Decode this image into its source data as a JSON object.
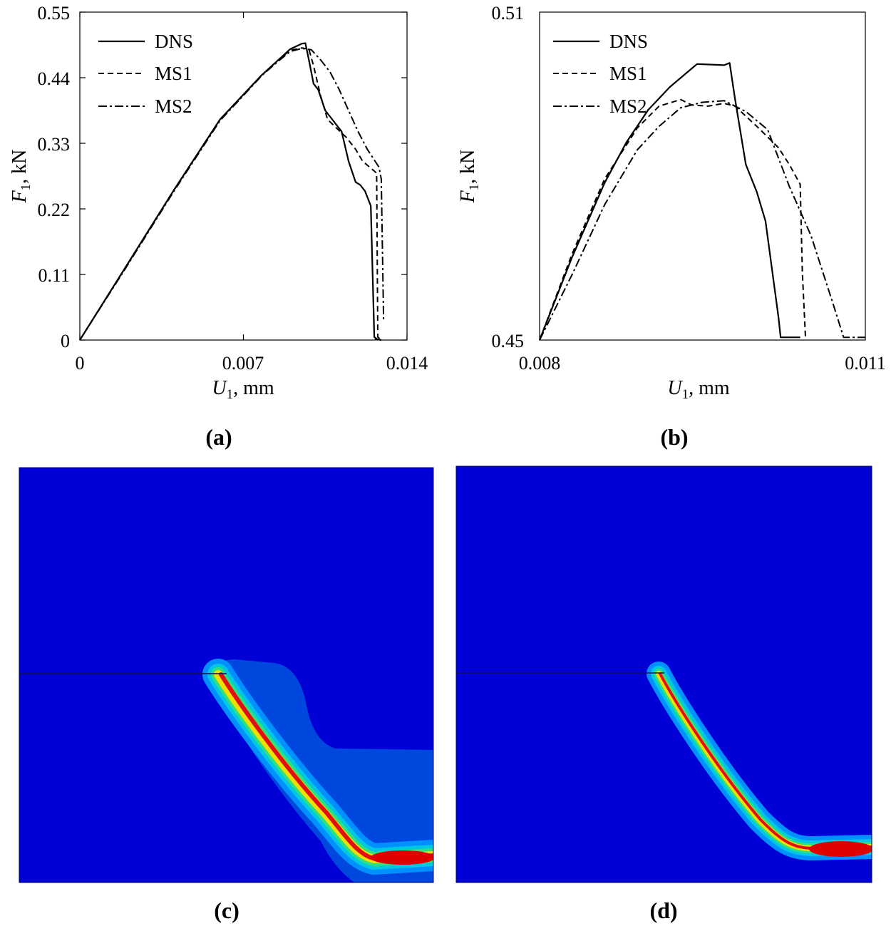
{
  "panels": {
    "a": "(a)",
    "b": "(b)",
    "c": "(c)",
    "d": "(d)"
  },
  "chart_data": [
    {
      "type": "line",
      "xlabel": "U1, mm",
      "ylabel": "F1, kN",
      "xlim": [
        0,
        0.014
      ],
      "ylim": [
        0,
        0.55
      ],
      "xticks": [
        "0",
        "0.007",
        "0.014"
      ],
      "yticks": [
        "0",
        "0.11",
        "0.22",
        "0.33",
        "0.44",
        "0.55"
      ],
      "legend_placement": "top-left",
      "series": [
        {
          "name": "DNS",
          "style": "solid",
          "x": [
            0,
            0.002,
            0.004,
            0.006,
            0.0078,
            0.0085,
            0.009,
            0.0095,
            0.00965,
            0.0098,
            0.01,
            0.0102,
            0.0105,
            0.0108,
            0.011,
            0.0112,
            0.0115,
            0.0118,
            0.012,
            0.0122,
            0.01245,
            0.0126,
            0.0127,
            0.01265,
            0.0129
          ],
          "y": [
            0,
            0.125,
            0.25,
            0.37,
            0.445,
            0.47,
            0.488,
            0.497,
            0.498,
            0.47,
            0.43,
            0.42,
            0.385,
            0.37,
            0.36,
            0.35,
            0.3,
            0.265,
            0.26,
            0.25,
            0.225,
            0.005,
            0.002,
            0.002,
            0.0
          ]
        },
        {
          "name": "MS1",
          "style": "dashed",
          "x": [
            0,
            0.002,
            0.004,
            0.006,
            0.0078,
            0.0085,
            0.009,
            0.0095,
            0.0098,
            0.01,
            0.0103,
            0.0106,
            0.011,
            0.0114,
            0.0118,
            0.0121,
            0.0127,
            0.01275,
            0.0129
          ],
          "y": [
            0,
            0.125,
            0.25,
            0.37,
            0.445,
            0.47,
            0.486,
            0.49,
            0.488,
            0.46,
            0.41,
            0.37,
            0.355,
            0.34,
            0.32,
            0.3,
            0.28,
            0.005,
            0.0
          ]
        },
        {
          "name": "MS2",
          "style": "dashdot",
          "x": [
            0,
            0.002,
            0.004,
            0.006,
            0.0078,
            0.0085,
            0.009,
            0.0095,
            0.0099,
            0.0103,
            0.0107,
            0.0111,
            0.0115,
            0.0119,
            0.0123,
            0.0128,
            0.0129,
            0.013
          ],
          "y": [
            0,
            0.123,
            0.248,
            0.368,
            0.444,
            0.468,
            0.484,
            0.489,
            0.487,
            0.47,
            0.45,
            0.42,
            0.385,
            0.35,
            0.32,
            0.29,
            0.27,
            0.03
          ]
        }
      ]
    },
    {
      "type": "line",
      "xlabel": "U1, mm",
      "ylabel": "F1, kN",
      "xlim": [
        0.008,
        0.011
      ],
      "ylim": [
        0.45,
        0.51
      ],
      "xticks": [
        "0.008",
        "0.011"
      ],
      "yticks": [
        "0.45",
        "0.51"
      ],
      "legend_placement": "top-left",
      "series": [
        {
          "name": "DNS",
          "style": "solid",
          "x": [
            0.008,
            0.0083,
            0.0086,
            0.0088,
            0.009,
            0.0092,
            0.00945,
            0.0097,
            0.00975,
            0.0098,
            0.0099,
            0.01,
            0.01008,
            0.0102,
            0.01022,
            0.0104
          ],
          "y": [
            0.45,
            0.4652,
            0.4788,
            0.4862,
            0.4921,
            0.4963,
            0.5005,
            0.5003,
            0.5007,
            0.4941,
            0.4821,
            0.4771,
            0.4718,
            0.4542,
            0.4505,
            0.4505
          ]
        },
        {
          "name": "MS1",
          "style": "dashed",
          "x": [
            0.008,
            0.0083,
            0.0086,
            0.0089,
            0.0091,
            0.0093,
            0.0094,
            0.00955,
            0.0097,
            0.0098,
            0.01,
            0.0102,
            0.0103,
            0.0104,
            0.01042,
            0.01045
          ],
          "y": [
            0.45,
            0.4658,
            0.4795,
            0.4888,
            0.4928,
            0.494,
            0.493,
            0.4928,
            0.4933,
            0.4928,
            0.4891,
            0.4852,
            0.4821,
            0.4785,
            0.4625,
            0.45
          ]
        },
        {
          "name": "MS2",
          "style": "dashdot",
          "x": [
            0.008,
            0.0083,
            0.0086,
            0.0089,
            0.0091,
            0.0093,
            0.0095,
            0.0097,
            0.0099,
            0.0101,
            0.0103,
            0.0105,
            0.0107,
            0.0108,
            0.0109,
            0.011
          ],
          "y": [
            0.45,
            0.462,
            0.4748,
            0.4848,
            0.4891,
            0.4925,
            0.4935,
            0.4938,
            0.4918,
            0.4885,
            0.4781,
            0.4691,
            0.4568,
            0.4505,
            0.4505,
            0.4505
          ]
        }
      ]
    }
  ]
}
